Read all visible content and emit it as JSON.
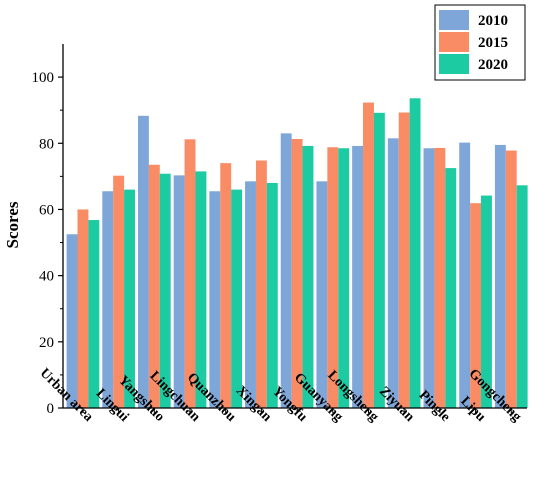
{
  "chart_data": {
    "type": "bar",
    "title": "",
    "xlabel": "",
    "ylabel": "Scores",
    "ylim": [
      0,
      110
    ],
    "yticks": [
      0,
      20,
      40,
      60,
      80,
      100
    ],
    "grid": false,
    "legend": "top-right",
    "categories": [
      "Urban area",
      "Lingui",
      "Yangshuo",
      "Lingchuan",
      "Quanzhou",
      "Xingan",
      "Yongfu",
      "Guanyang",
      "Longsheng",
      "Ziyuan",
      "Pingle",
      "Lipu",
      "Gongcheng"
    ],
    "series": [
      {
        "name": "2010",
        "color": "#7ea6d8",
        "values": [
          52.5,
          65.5,
          88.3,
          70.3,
          65.5,
          68.5,
          83,
          68.5,
          79.2,
          81.5,
          78.5,
          80.2,
          79.5
        ]
      },
      {
        "name": "2015",
        "color": "#f98b65",
        "values": [
          60,
          70.2,
          73.5,
          81.2,
          74,
          74.8,
          81.3,
          78.8,
          92.3,
          89.3,
          78.6,
          61.9,
          77.8
        ]
      },
      {
        "name": "2020",
        "color": "#1dcba3",
        "values": [
          56.8,
          66,
          70.8,
          71.5,
          66,
          68,
          79.2,
          78.5,
          89.2,
          93.6,
          72.5,
          64.2,
          67.3
        ]
      }
    ]
  }
}
